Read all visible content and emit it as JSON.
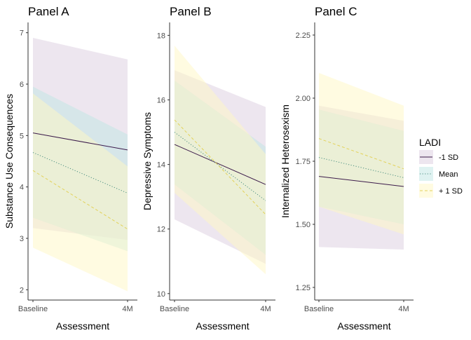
{
  "chart_data": [
    {
      "type": "line",
      "title": "Panel A",
      "xlabel": "Assessment",
      "ylabel": "Substance Use Consequences",
      "categories": [
        "Baseline",
        "4M"
      ],
      "ylim": [
        1.8,
        7.2
      ],
      "yticks": [
        "2",
        "3",
        "4",
        "5",
        "6",
        "7"
      ],
      "series": [
        {
          "name": "-1 SD",
          "values": [
            5.05,
            4.72
          ],
          "lower": [
            3.2,
            2.97
          ],
          "upper": [
            6.9,
            6.48
          ]
        },
        {
          "name": "Mean",
          "values": [
            4.67,
            3.88
          ],
          "lower": [
            3.4,
            2.75
          ],
          "upper": [
            5.95,
            5.02
          ]
        },
        {
          "name": "+ 1 SD",
          "values": [
            4.32,
            3.18
          ],
          "lower": [
            2.82,
            1.97
          ],
          "upper": [
            5.82,
            4.4
          ]
        }
      ]
    },
    {
      "type": "line",
      "title": "Panel B",
      "xlabel": "Assessment",
      "ylabel": "Depressive Symptoms",
      "categories": [
        "Baseline",
        "4M"
      ],
      "ylim": [
        9.8,
        18.4
      ],
      "yticks": [
        "10",
        "12",
        "14",
        "16",
        "18"
      ],
      "series": [
        {
          "name": "-1 SD",
          "values": [
            14.62,
            13.38
          ],
          "lower": [
            12.3,
            10.92
          ],
          "upper": [
            16.92,
            15.78
          ]
        },
        {
          "name": "Mean",
          "values": [
            15.0,
            12.88
          ],
          "lower": [
            13.38,
            11.2
          ],
          "upper": [
            16.6,
            14.55
          ]
        },
        {
          "name": "+ 1 SD",
          "values": [
            15.38,
            12.45
          ],
          "lower": [
            13.12,
            10.6
          ],
          "upper": [
            17.68,
            14.32
          ]
        }
      ]
    },
    {
      "type": "line",
      "title": "Panel C",
      "xlabel": "Assessment",
      "ylabel": "Internalized Heterosexism",
      "categories": [
        "Baseline",
        "4M"
      ],
      "ylim": [
        1.2,
        2.3
      ],
      "yticks": [
        "1.25",
        "1.50",
        "1.75",
        "2.00",
        "2.25"
      ],
      "series": [
        {
          "name": "-1 SD",
          "values": [
            1.69,
            1.65
          ],
          "lower": [
            1.41,
            1.4
          ],
          "upper": [
            1.97,
            1.91
          ]
        },
        {
          "name": "Mean",
          "values": [
            1.765,
            1.685
          ],
          "lower": [
            1.57,
            1.5
          ],
          "upper": [
            1.955,
            1.87
          ]
        },
        {
          "name": "+ 1 SD",
          "values": [
            1.84,
            1.72
          ],
          "lower": [
            1.57,
            1.46
          ],
          "upper": [
            2.1,
            1.97
          ]
        }
      ]
    }
  ],
  "legend": {
    "title": "LADI",
    "position": "right",
    "items": [
      "-1 SD",
      "Mean",
      "+ 1 SD"
    ]
  },
  "colors": {
    "-1 SD": {
      "line": "#3b1a4a",
      "fill": "#dccde0"
    },
    "Mean": {
      "line": "#4a8f80",
      "fill": "#bfe6e3"
    },
    "+ 1 SD": {
      "line": "#e3d25a",
      "fill": "#fff7c4"
    },
    "axis": "#333333",
    "text": "#000000",
    "tick_text": "#4d4d4d"
  }
}
